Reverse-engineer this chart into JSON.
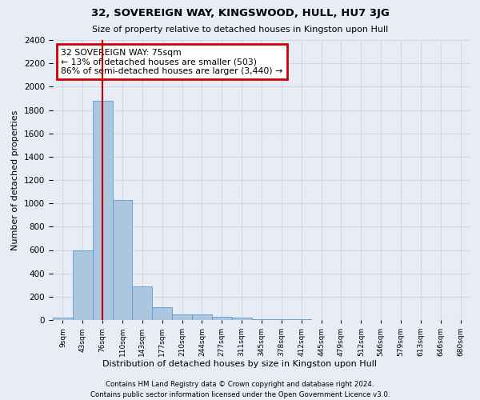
{
  "title": "32, SOVEREIGN WAY, KINGSWOOD, HULL, HU7 3JG",
  "subtitle": "Size of property relative to detached houses in Kingston upon Hull",
  "xlabel": "Distribution of detached houses by size in Kingston upon Hull",
  "ylabel": "Number of detached properties",
  "footnote1": "Contains HM Land Registry data © Crown copyright and database right 2024.",
  "footnote2": "Contains public sector information licensed under the Open Government Licence v3.0.",
  "bin_labels": [
    "9sqm",
    "43sqm",
    "76sqm",
    "110sqm",
    "143sqm",
    "177sqm",
    "210sqm",
    "244sqm",
    "277sqm",
    "311sqm",
    "345sqm",
    "378sqm",
    "412sqm",
    "445sqm",
    "479sqm",
    "512sqm",
    "546sqm",
    "579sqm",
    "613sqm",
    "646sqm",
    "680sqm"
  ],
  "bar_values": [
    20,
    600,
    1880,
    1030,
    290,
    110,
    50,
    50,
    30,
    20,
    5,
    5,
    5,
    2,
    2,
    2,
    1,
    1,
    1,
    1,
    0
  ],
  "bar_color": "#adc6e0",
  "bar_edgecolor": "#5b9bd5",
  "grid_color": "#d0d8e8",
  "background_color": "#e8edf5",
  "red_line_index": 2,
  "annotation_text": "32 SOVEREIGN WAY: 75sqm\n← 13% of detached houses are smaller (503)\n86% of semi-detached houses are larger (3,440) →",
  "annotation_box_color": "#cc0000",
  "ylim": [
    0,
    2400
  ],
  "yticks": [
    0,
    200,
    400,
    600,
    800,
    1000,
    1200,
    1400,
    1600,
    1800,
    2000,
    2200,
    2400
  ]
}
